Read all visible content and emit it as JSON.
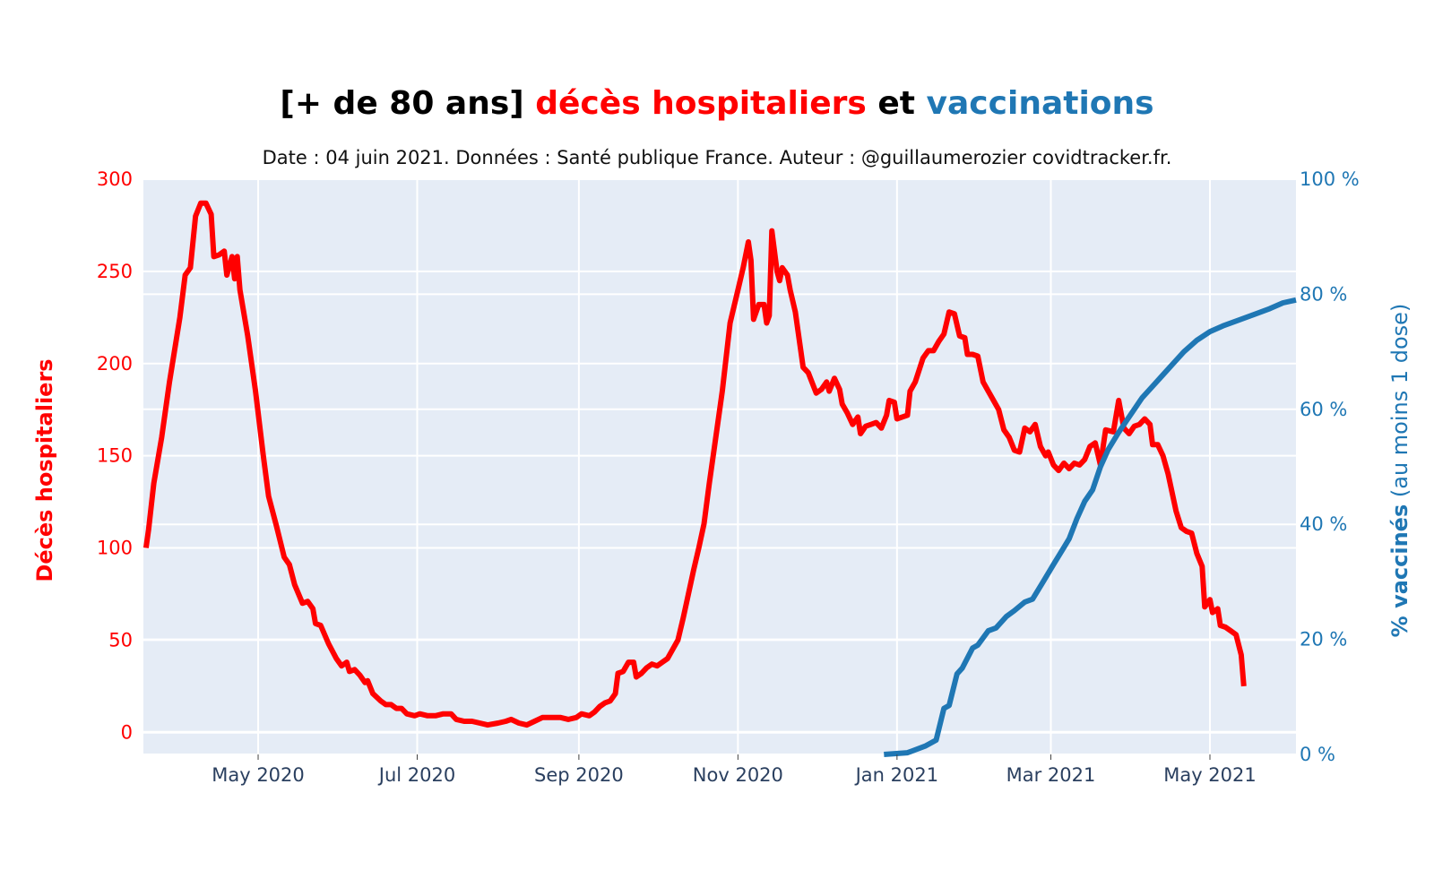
{
  "chart_data": {
    "type": "line",
    "title_parts": [
      {
        "text": "[+ de 80 ans] ",
        "color": "#000000"
      },
      {
        "text": "décès hospitaliers",
        "color": "#ff0000"
      },
      {
        "text": " et ",
        "color": "#000000"
      },
      {
        "text": "vaccinations",
        "color": "#1f77b4"
      }
    ],
    "subtitle": "Date : 04 juin 2021. Données : Santé publique France. Auteur : @guillaumerozier covidtracker.fr.",
    "xlim": [
      "2020-03-18",
      "2021-06-03"
    ],
    "x_ticks": [
      {
        "date": "2020-05-01",
        "label": "May 2020"
      },
      {
        "date": "2020-07-01",
        "label": "Jul 2020"
      },
      {
        "date": "2020-09-01",
        "label": "Sep 2020"
      },
      {
        "date": "2020-11-01",
        "label": "Nov 2020"
      },
      {
        "date": "2021-01-01",
        "label": "Jan 2021"
      },
      {
        "date": "2021-03-01",
        "label": "Mar 2021"
      },
      {
        "date": "2021-05-01",
        "label": "May 2021"
      }
    ],
    "y_left": {
      "label": "Décès hospitaliers",
      "color": "#ff0000",
      "ylim": [
        -12,
        300
      ],
      "ticks": [
        0,
        50,
        100,
        150,
        200,
        250,
        300
      ]
    },
    "y_right": {
      "label_bold": "% vaccinés",
      "label_rest": " (au moins 1 dose)",
      "color": "#1f77b4",
      "ylim": [
        0,
        100
      ],
      "ticks": [
        {
          "value": 0,
          "label": "0 %"
        },
        {
          "value": 20,
          "label": "20 %"
        },
        {
          "value": 40,
          "label": "40 %"
        },
        {
          "value": 60,
          "label": "60 %"
        },
        {
          "value": 80,
          "label": "80 %"
        },
        {
          "value": 100,
          "label": "100 %"
        }
      ]
    },
    "grid": true,
    "plot_bgcolor": "#e5ecf6",
    "series": [
      {
        "axis": "left",
        "color": "#ff0000",
        "points": [
          [
            "2020-03-19",
            100
          ],
          [
            "2020-03-20",
            110
          ],
          [
            "2020-03-22",
            135
          ],
          [
            "2020-03-25",
            160
          ],
          [
            "2020-03-28",
            190
          ],
          [
            "2020-04-01",
            225
          ],
          [
            "2020-04-03",
            248
          ],
          [
            "2020-04-05",
            252
          ],
          [
            "2020-04-07",
            280
          ],
          [
            "2020-04-09",
            287
          ],
          [
            "2020-04-11",
            287
          ],
          [
            "2020-04-13",
            281
          ],
          [
            "2020-04-14",
            258
          ],
          [
            "2020-04-16",
            259
          ],
          [
            "2020-04-18",
            261
          ],
          [
            "2020-04-19",
            248
          ],
          [
            "2020-04-21",
            258
          ],
          [
            "2020-04-22",
            246
          ],
          [
            "2020-04-23",
            258
          ],
          [
            "2020-04-24",
            240
          ],
          [
            "2020-04-27",
            215
          ],
          [
            "2020-04-30",
            185
          ],
          [
            "2020-05-03",
            150
          ],
          [
            "2020-05-05",
            128
          ],
          [
            "2020-05-08",
            112
          ],
          [
            "2020-05-11",
            95
          ],
          [
            "2020-05-13",
            91
          ],
          [
            "2020-05-15",
            80
          ],
          [
            "2020-05-18",
            70
          ],
          [
            "2020-05-20",
            71
          ],
          [
            "2020-05-22",
            67
          ],
          [
            "2020-05-23",
            59
          ],
          [
            "2020-05-25",
            58
          ],
          [
            "2020-05-28",
            48
          ],
          [
            "2020-05-31",
            40
          ],
          [
            "2020-06-02",
            36
          ],
          [
            "2020-06-04",
            38
          ],
          [
            "2020-06-05",
            33
          ],
          [
            "2020-06-07",
            34
          ],
          [
            "2020-06-09",
            31
          ],
          [
            "2020-06-11",
            27
          ],
          [
            "2020-06-12",
            28
          ],
          [
            "2020-06-14",
            21
          ],
          [
            "2020-06-17",
            17
          ],
          [
            "2020-06-19",
            15
          ],
          [
            "2020-06-21",
            15
          ],
          [
            "2020-06-23",
            13
          ],
          [
            "2020-06-25",
            13
          ],
          [
            "2020-06-27",
            10
          ],
          [
            "2020-06-30",
            9
          ],
          [
            "2020-07-02",
            10
          ],
          [
            "2020-07-05",
            9
          ],
          [
            "2020-07-08",
            9
          ],
          [
            "2020-07-11",
            10
          ],
          [
            "2020-07-14",
            10
          ],
          [
            "2020-07-16",
            7
          ],
          [
            "2020-07-19",
            6
          ],
          [
            "2020-07-22",
            6
          ],
          [
            "2020-07-25",
            5
          ],
          [
            "2020-07-28",
            4
          ],
          [
            "2020-08-01",
            5
          ],
          [
            "2020-08-04",
            6
          ],
          [
            "2020-08-06",
            7
          ],
          [
            "2020-08-09",
            5
          ],
          [
            "2020-08-12",
            4
          ],
          [
            "2020-08-15",
            6
          ],
          [
            "2020-08-18",
            8
          ],
          [
            "2020-08-21",
            8
          ],
          [
            "2020-08-25",
            8
          ],
          [
            "2020-08-28",
            7
          ],
          [
            "2020-08-31",
            8
          ],
          [
            "2020-09-02",
            10
          ],
          [
            "2020-09-05",
            9
          ],
          [
            "2020-09-07",
            11
          ],
          [
            "2020-09-09",
            14
          ],
          [
            "2020-09-11",
            16
          ],
          [
            "2020-09-13",
            17
          ],
          [
            "2020-09-15",
            21
          ],
          [
            "2020-09-16",
            32
          ],
          [
            "2020-09-18",
            33
          ],
          [
            "2020-09-20",
            38
          ],
          [
            "2020-09-22",
            38
          ],
          [
            "2020-09-23",
            30
          ],
          [
            "2020-09-25",
            32
          ],
          [
            "2020-09-27",
            35
          ],
          [
            "2020-09-29",
            37
          ],
          [
            "2020-10-01",
            36
          ],
          [
            "2020-10-03",
            38
          ],
          [
            "2020-10-05",
            40
          ],
          [
            "2020-10-07",
            45
          ],
          [
            "2020-10-09",
            50
          ],
          [
            "2020-10-11",
            62
          ],
          [
            "2020-10-13",
            75
          ],
          [
            "2020-10-15",
            88
          ],
          [
            "2020-10-17",
            100
          ],
          [
            "2020-10-19",
            113
          ],
          [
            "2020-10-21",
            135
          ],
          [
            "2020-10-23",
            155
          ],
          [
            "2020-10-26",
            185
          ],
          [
            "2020-10-29",
            222
          ],
          [
            "2020-11-01",
            240
          ],
          [
            "2020-11-03",
            252
          ],
          [
            "2020-11-05",
            266
          ],
          [
            "2020-11-06",
            256
          ],
          [
            "2020-11-07",
            224
          ],
          [
            "2020-11-09",
            232
          ],
          [
            "2020-11-11",
            232
          ],
          [
            "2020-11-12",
            222
          ],
          [
            "2020-11-13",
            226
          ],
          [
            "2020-11-14",
            272
          ],
          [
            "2020-11-16",
            250
          ],
          [
            "2020-11-17",
            245
          ],
          [
            "2020-11-18",
            252
          ],
          [
            "2020-11-20",
            248
          ],
          [
            "2020-11-21",
            240
          ],
          [
            "2020-11-23",
            228
          ],
          [
            "2020-11-26",
            198
          ],
          [
            "2020-11-28",
            195
          ],
          [
            "2020-12-01",
            184
          ],
          [
            "2020-12-03",
            186
          ],
          [
            "2020-12-05",
            190
          ],
          [
            "2020-12-06",
            185
          ],
          [
            "2020-12-08",
            192
          ],
          [
            "2020-12-10",
            186
          ],
          [
            "2020-12-11",
            178
          ],
          [
            "2020-12-13",
            173
          ],
          [
            "2020-12-15",
            167
          ],
          [
            "2020-12-17",
            171
          ],
          [
            "2020-12-18",
            162
          ],
          [
            "2020-12-20",
            166
          ],
          [
            "2020-12-22",
            167
          ],
          [
            "2020-12-24",
            168
          ],
          [
            "2020-12-26",
            165
          ],
          [
            "2020-12-28",
            172
          ],
          [
            "2020-12-29",
            180
          ],
          [
            "2020-12-31",
            179
          ],
          [
            "2021-01-01",
            170
          ],
          [
            "2021-01-03",
            171
          ],
          [
            "2021-01-05",
            172
          ],
          [
            "2021-01-06",
            185
          ],
          [
            "2021-01-08",
            190
          ],
          [
            "2021-01-11",
            203
          ],
          [
            "2021-01-13",
            207
          ],
          [
            "2021-01-15",
            207
          ],
          [
            "2021-01-17",
            212
          ],
          [
            "2021-01-19",
            216
          ],
          [
            "2021-01-21",
            228
          ],
          [
            "2021-01-23",
            227
          ],
          [
            "2021-01-25",
            215
          ],
          [
            "2021-01-27",
            214
          ],
          [
            "2021-01-28",
            205
          ],
          [
            "2021-01-30",
            205
          ],
          [
            "2021-02-01",
            204
          ],
          [
            "2021-02-03",
            190
          ],
          [
            "2021-02-05",
            185
          ],
          [
            "2021-02-07",
            180
          ],
          [
            "2021-02-09",
            175
          ],
          [
            "2021-02-11",
            164
          ],
          [
            "2021-02-13",
            160
          ],
          [
            "2021-02-15",
            153
          ],
          [
            "2021-02-17",
            152
          ],
          [
            "2021-02-19",
            165
          ],
          [
            "2021-02-21",
            163
          ],
          [
            "2021-02-23",
            167
          ],
          [
            "2021-02-25",
            155
          ],
          [
            "2021-02-27",
            150
          ],
          [
            "2021-02-28",
            152
          ],
          [
            "2021-03-02",
            145
          ],
          [
            "2021-03-04",
            142
          ],
          [
            "2021-03-06",
            146
          ],
          [
            "2021-03-08",
            143
          ],
          [
            "2021-03-10",
            146
          ],
          [
            "2021-03-12",
            145
          ],
          [
            "2021-03-14",
            148
          ],
          [
            "2021-03-16",
            155
          ],
          [
            "2021-03-18",
            157
          ],
          [
            "2021-03-20",
            145
          ],
          [
            "2021-03-22",
            164
          ],
          [
            "2021-03-25",
            163
          ],
          [
            "2021-03-27",
            180
          ],
          [
            "2021-03-29",
            165
          ],
          [
            "2021-03-31",
            162
          ],
          [
            "2021-04-02",
            166
          ],
          [
            "2021-04-04",
            167
          ],
          [
            "2021-04-06",
            170
          ],
          [
            "2021-04-08",
            167
          ],
          [
            "2021-04-09",
            156
          ],
          [
            "2021-04-11",
            156
          ],
          [
            "2021-04-13",
            150
          ],
          [
            "2021-04-15",
            140
          ],
          [
            "2021-04-18",
            120
          ],
          [
            "2021-04-20",
            111
          ],
          [
            "2021-04-22",
            109
          ],
          [
            "2021-04-24",
            108
          ],
          [
            "2021-04-26",
            97
          ],
          [
            "2021-04-28",
            90
          ],
          [
            "2021-04-29",
            68
          ],
          [
            "2021-05-01",
            72
          ],
          [
            "2021-05-02",
            65
          ],
          [
            "2021-05-04",
            67
          ],
          [
            "2021-05-05",
            58
          ],
          [
            "2021-05-07",
            57
          ],
          [
            "2021-05-09",
            55
          ],
          [
            "2021-05-11",
            53
          ],
          [
            "2021-05-13",
            42
          ],
          [
            "2021-05-14",
            25
          ]
        ]
      },
      {
        "axis": "right",
        "color": "#1f77b4",
        "points": [
          [
            "2020-12-27",
            0
          ],
          [
            "2021-01-05",
            0.3
          ],
          [
            "2021-01-12",
            1.5
          ],
          [
            "2021-01-16",
            2.5
          ],
          [
            "2021-01-19",
            8
          ],
          [
            "2021-01-21",
            8.5
          ],
          [
            "2021-01-24",
            14
          ],
          [
            "2021-01-26",
            15
          ],
          [
            "2021-01-30",
            18.5
          ],
          [
            "2021-02-01",
            19
          ],
          [
            "2021-02-05",
            21.5
          ],
          [
            "2021-02-08",
            22
          ],
          [
            "2021-02-12",
            24
          ],
          [
            "2021-02-15",
            25
          ],
          [
            "2021-02-19",
            26.5
          ],
          [
            "2021-02-22",
            27
          ],
          [
            "2021-02-26",
            30
          ],
          [
            "2021-03-02",
            33
          ],
          [
            "2021-03-06",
            36
          ],
          [
            "2021-03-08",
            37.5
          ],
          [
            "2021-03-11",
            41
          ],
          [
            "2021-03-14",
            44
          ],
          [
            "2021-03-17",
            46
          ],
          [
            "2021-03-20",
            50
          ],
          [
            "2021-03-23",
            53
          ],
          [
            "2021-03-27",
            56
          ],
          [
            "2021-03-30",
            58
          ],
          [
            "2021-04-02",
            60
          ],
          [
            "2021-04-05",
            62
          ],
          [
            "2021-04-09",
            64
          ],
          [
            "2021-04-13",
            66
          ],
          [
            "2021-04-17",
            68
          ],
          [
            "2021-04-21",
            70
          ],
          [
            "2021-04-26",
            72
          ],
          [
            "2021-05-01",
            73.5
          ],
          [
            "2021-05-06",
            74.5
          ],
          [
            "2021-05-12",
            75.5
          ],
          [
            "2021-05-18",
            76.5
          ],
          [
            "2021-05-24",
            77.5
          ],
          [
            "2021-05-29",
            78.5
          ],
          [
            "2021-06-03",
            79
          ]
        ]
      }
    ]
  }
}
